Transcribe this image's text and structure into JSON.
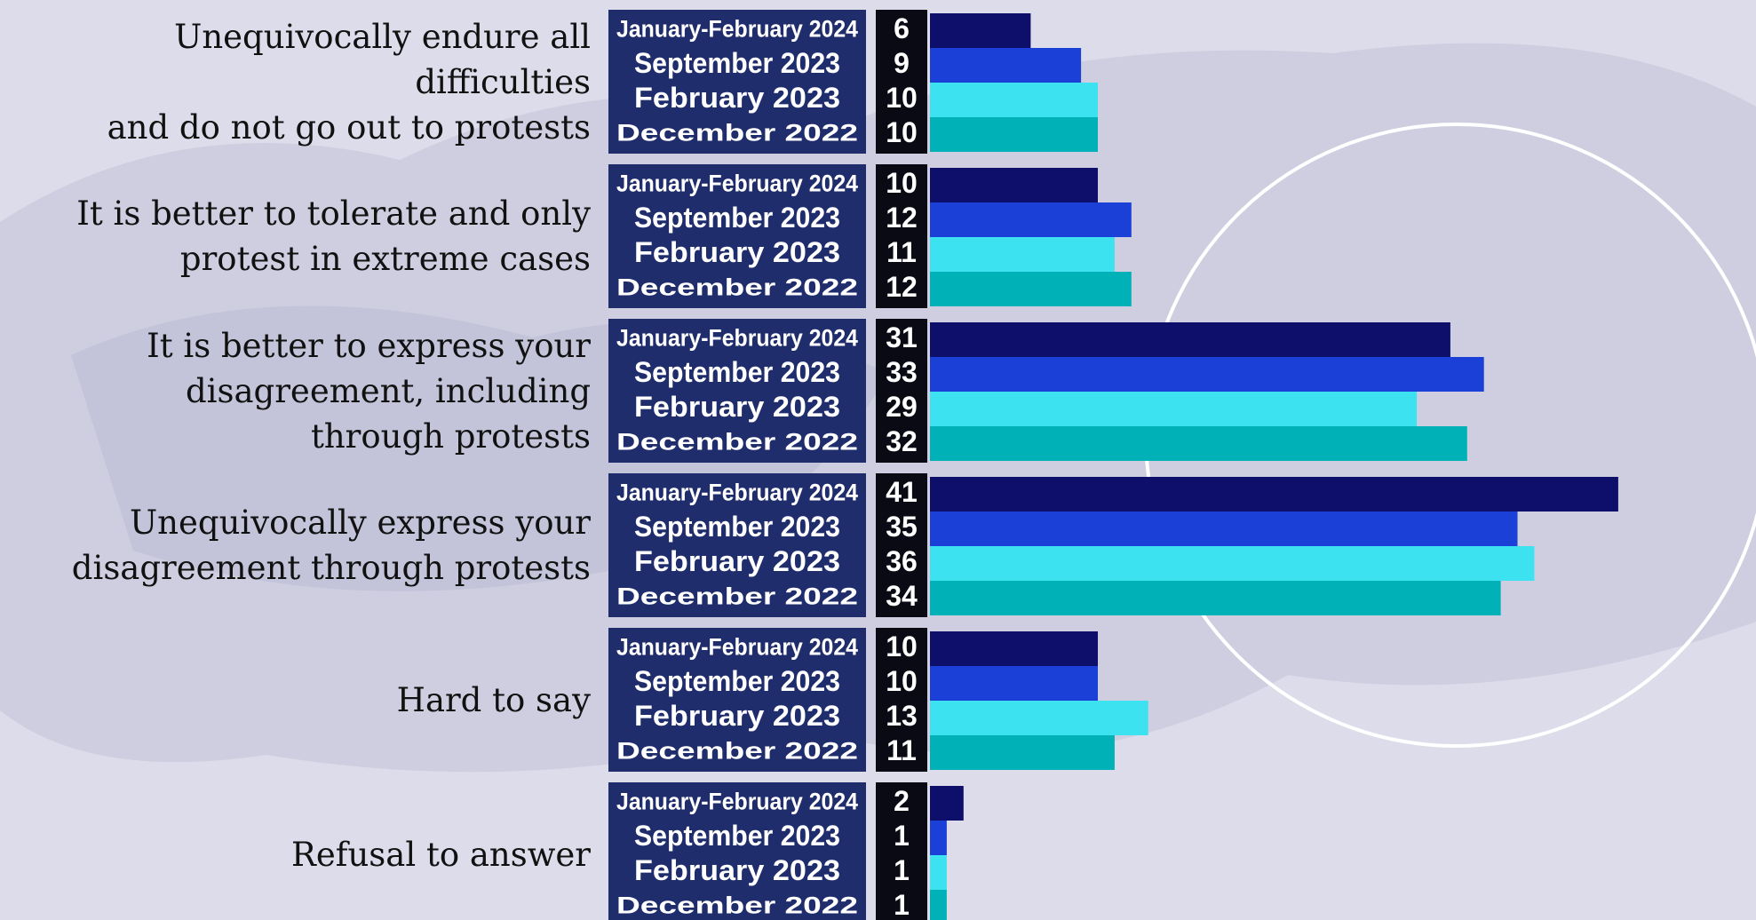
{
  "chart_data": {
    "type": "bar",
    "orientation": "horizontal",
    "categories": [
      "Unequivocally endure all difficulties\nand do not go out to protests",
      "It is better to tolerate and only\nprotest in extreme cases",
      "It is better to express your\ndisagreement, including\nthrough protests",
      "Unequivocally express your\ndisagreement through protests",
      "Hard to say",
      "Refusal to answer"
    ],
    "series": [
      {
        "name": "January-February 2024",
        "color": "#0d0f6b",
        "values": [
          6,
          10,
          31,
          41,
          10,
          2
        ]
      },
      {
        "name": "September 2023",
        "color": "#1a40d8",
        "values": [
          9,
          12,
          33,
          35,
          10,
          1
        ]
      },
      {
        "name": "February 2023",
        "color": "#3ce2ef",
        "values": [
          10,
          11,
          29,
          36,
          13,
          1
        ]
      },
      {
        "name": "December 2022",
        "color": "#00b2b8",
        "values": [
          10,
          12,
          32,
          34,
          11,
          1
        ]
      }
    ]
  }
}
